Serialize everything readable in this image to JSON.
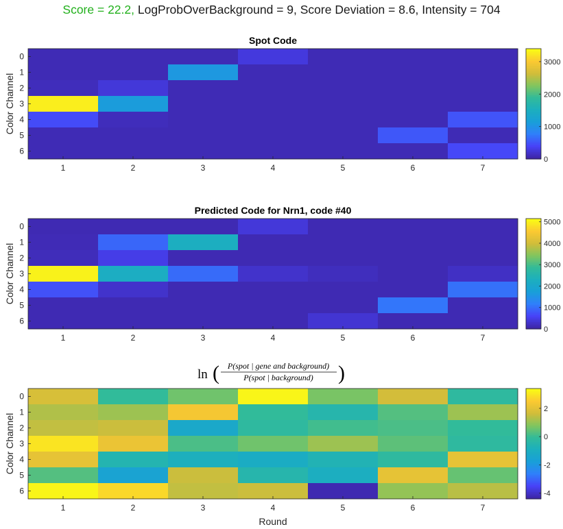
{
  "suptitle": {
    "score": "Score = 22.2,",
    "rest": " LogProbOverBackground = 9, Score Deviation = 8.6, Intensity = 704"
  },
  "colormap": [
    "#3e26a8",
    "#4743f8",
    "#2f80fa",
    "#199fd8",
    "#1cafbe",
    "#32bb99",
    "#82c55e",
    "#d1bd3a",
    "#fbc932",
    "#f9fb15"
  ],
  "chart_data": [
    {
      "type": "heatmap",
      "title": "Spot Code",
      "xlabel": "",
      "ylabel": "Color Channel",
      "x_ticks": [
        "1",
        "2",
        "3",
        "4",
        "5",
        "6",
        "7"
      ],
      "y_ticks": [
        "0",
        "1",
        "2",
        "3",
        "4",
        "5",
        "6"
      ],
      "clim": [
        0,
        3400
      ],
      "colorbar_ticks": [
        0,
        1000,
        2000,
        3000
      ],
      "colorbar_labels": [
        "0",
        "1000",
        "2000",
        "3000"
      ],
      "values": [
        [
          60,
          60,
          60,
          250,
          60,
          60,
          60
        ],
        [
          60,
          60,
          1050,
          60,
          60,
          60,
          60
        ],
        [
          90,
          230,
          60,
          60,
          60,
          60,
          60
        ],
        [
          3300,
          1100,
          60,
          60,
          60,
          60,
          60
        ],
        [
          430,
          90,
          60,
          60,
          60,
          60,
          480
        ],
        [
          60,
          60,
          60,
          60,
          60,
          500,
          60
        ],
        [
          60,
          60,
          60,
          60,
          60,
          60,
          400
        ]
      ]
    },
    {
      "type": "heatmap",
      "title": "Predicted Code for Nrn1, code #40",
      "xlabel": "",
      "ylabel": "Color Channel",
      "x_ticks": [
        "1",
        "2",
        "3",
        "4",
        "5",
        "6",
        "7"
      ],
      "y_ticks": [
        "0",
        "1",
        "2",
        "3",
        "4",
        "5",
        "6"
      ],
      "clim": [
        0,
        5150
      ],
      "colorbar_ticks": [
        0,
        1000,
        2000,
        3000,
        4000,
        5000
      ],
      "colorbar_labels": [
        "0",
        "1000",
        "2000",
        "3000",
        "4000",
        "5000"
      ],
      "values": [
        [
          80,
          80,
          80,
          350,
          80,
          80,
          80
        ],
        [
          100,
          900,
          2250,
          80,
          80,
          80,
          80
        ],
        [
          130,
          450,
          80,
          80,
          80,
          80,
          80
        ],
        [
          5050,
          2200,
          950,
          250,
          150,
          80,
          200
        ],
        [
          700,
          250,
          80,
          80,
          80,
          80,
          1000
        ],
        [
          80,
          80,
          80,
          80,
          80,
          1050,
          80
        ],
        [
          80,
          80,
          80,
          80,
          300,
          80,
          80
        ]
      ]
    },
    {
      "type": "heatmap",
      "title": "ln( P(spot | gene and background) / P(spot | background) )",
      "title_parts": {
        "fn": "ln",
        "numerator": "P(spot | gene and background)",
        "denominator": "P(spot | background)"
      },
      "xlabel": "Round",
      "ylabel": "Color Channel",
      "x_ticks": [
        "1",
        "2",
        "3",
        "4",
        "5",
        "6",
        "7"
      ],
      "y_ticks": [
        "0",
        "1",
        "2",
        "3",
        "4",
        "5",
        "6"
      ],
      "clim": [
        -4.4,
        3.4
      ],
      "colorbar_ticks": [
        2,
        0,
        -2,
        -4
      ],
      "colorbar_labels": [
        "2",
        "0",
        "-2",
        "-4"
      ],
      "values": [
        [
          1.8,
          -0.1,
          0.6,
          3.3,
          0.7,
          1.7,
          -0.2
        ],
        [
          1.3,
          1.1,
          2.4,
          -0.1,
          -0.5,
          0.3,
          1.1
        ],
        [
          1.5,
          1.6,
          -1.3,
          -0.2,
          0.1,
          0.2,
          -0.1
        ],
        [
          3.0,
          2.2,
          0.2,
          0.6,
          1.1,
          0.4,
          -0.2
        ],
        [
          2.1,
          -0.6,
          -0.9,
          -1.1,
          -0.7,
          -0.2,
          2.1
        ],
        [
          0.3,
          -1.6,
          1.6,
          -0.5,
          -1.0,
          2.1,
          0.5
        ],
        [
          3.3,
          2.8,
          1.5,
          1.6,
          -4.3,
          1.0,
          1.4
        ]
      ]
    }
  ]
}
